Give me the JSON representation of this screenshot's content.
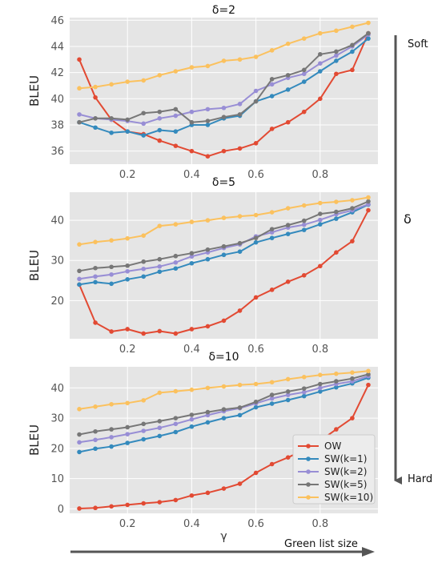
{
  "figure": {
    "xlabel": "γ",
    "ylabel": "BLEU",
    "arrow_right_label": "Soft",
    "arrow_right_mid_label": "δ",
    "arrow_right_end_label": "Hard",
    "arrow_bottom_label": "Green list size"
  },
  "colors": {
    "OW": "#e24a33",
    "SW(k=1)": "#348abd",
    "SW(k=2)": "#988ed5",
    "SW(k=5)": "#777777",
    "SW(k=10)": "#fbc15e",
    "panel_bg": "#e5e5e5",
    "grid": "#ffffff"
  },
  "chart_data": [
    {
      "type": "line",
      "title": "δ=2",
      "xlabel": "",
      "ylabel": "BLEU",
      "xlim": [
        0.02,
        0.98
      ],
      "ylim": [
        35.0,
        46.2
      ],
      "xticks": [
        0.2,
        0.4,
        0.6,
        0.8
      ],
      "xtick_labels": [
        "0.2",
        "0.4",
        "0.6",
        "0.8"
      ],
      "yticks": [
        36,
        38,
        40,
        42,
        44,
        46
      ],
      "ytick_labels": [
        "36",
        "38",
        "40",
        "42",
        "44",
        "46"
      ],
      "grid": true,
      "x": [
        0.05,
        0.1,
        0.15,
        0.2,
        0.25,
        0.3,
        0.35,
        0.4,
        0.45,
        0.5,
        0.55,
        0.6,
        0.65,
        0.7,
        0.75,
        0.8,
        0.85,
        0.9,
        0.95
      ],
      "series": [
        {
          "name": "OW",
          "values": [
            43.0,
            40.1,
            38.4,
            37.5,
            37.3,
            36.8,
            36.4,
            36.0,
            35.6,
            36.0,
            36.2,
            36.6,
            37.7,
            38.2,
            39.0,
            40.0,
            41.9,
            42.2,
            45.0
          ]
        },
        {
          "name": "SW(k=1)",
          "values": [
            38.2,
            37.8,
            37.4,
            37.5,
            37.2,
            37.6,
            37.5,
            38.0,
            38.0,
            38.5,
            38.7,
            39.8,
            40.2,
            40.7,
            41.3,
            42.1,
            42.9,
            43.6,
            44.6
          ]
        },
        {
          "name": "SW(k=2)",
          "values": [
            38.8,
            38.5,
            38.4,
            38.3,
            38.1,
            38.5,
            38.7,
            39.0,
            39.2,
            39.3,
            39.6,
            40.6,
            41.1,
            41.6,
            41.9,
            42.7,
            43.3,
            44.0,
            44.9
          ]
        },
        {
          "name": "SW(k=5)",
          "values": [
            38.2,
            38.5,
            38.5,
            38.4,
            38.9,
            39.0,
            39.2,
            38.2,
            38.3,
            38.6,
            38.8,
            39.8,
            41.5,
            41.8,
            42.2,
            43.4,
            43.6,
            44.1,
            45.0
          ]
        },
        {
          "name": "SW(k=10)",
          "values": [
            40.8,
            40.9,
            41.1,
            41.3,
            41.4,
            41.8,
            42.1,
            42.4,
            42.5,
            42.9,
            43.0,
            43.2,
            43.7,
            44.2,
            44.6,
            45.0,
            45.2,
            45.5,
            45.8
          ]
        }
      ]
    },
    {
      "type": "line",
      "title": "δ=5",
      "xlabel": "",
      "ylabel": "BLEU",
      "xlim": [
        0.02,
        0.98
      ],
      "ylim": [
        10.5,
        47.0
      ],
      "xticks": [
        0.2,
        0.4,
        0.6,
        0.8
      ],
      "xtick_labels": [
        "0.2",
        "0.4",
        "0.6",
        "0.8"
      ],
      "yticks": [
        20,
        30,
        40
      ],
      "ytick_labels": [
        "20",
        "30",
        "40"
      ],
      "grid": true,
      "x": [
        0.05,
        0.1,
        0.15,
        0.2,
        0.25,
        0.3,
        0.35,
        0.4,
        0.45,
        0.5,
        0.55,
        0.6,
        0.65,
        0.7,
        0.75,
        0.8,
        0.85,
        0.9,
        0.95
      ],
      "series": [
        {
          "name": "OW",
          "values": [
            24.0,
            14.5,
            12.3,
            12.9,
            11.8,
            12.4,
            11.8,
            12.9,
            13.6,
            15.0,
            17.5,
            20.8,
            22.7,
            24.7,
            26.3,
            28.6,
            32.0,
            34.8,
            42.5
          ]
        },
        {
          "name": "SW(k=1)",
          "values": [
            24.0,
            24.6,
            24.2,
            25.3,
            26.0,
            27.2,
            28.0,
            29.3,
            30.3,
            31.4,
            32.2,
            34.5,
            35.6,
            36.6,
            37.6,
            39.0,
            40.4,
            42.0,
            43.9
          ]
        },
        {
          "name": "SW(k=2)",
          "values": [
            25.4,
            26.0,
            26.5,
            27.3,
            27.9,
            28.5,
            29.5,
            31.0,
            32.0,
            33.1,
            34.0,
            36.0,
            37.0,
            38.2,
            38.9,
            40.1,
            41.5,
            42.5,
            44.0
          ]
        },
        {
          "name": "SW(k=5)",
          "values": [
            27.4,
            28.1,
            28.4,
            28.7,
            29.7,
            30.3,
            31.1,
            31.8,
            32.7,
            33.5,
            34.3,
            35.6,
            37.8,
            38.8,
            39.9,
            41.6,
            42.1,
            43.0,
            44.7
          ]
        },
        {
          "name": "SW(k=10)",
          "values": [
            34.0,
            34.6,
            35.0,
            35.5,
            36.2,
            38.6,
            39.0,
            39.6,
            40.0,
            40.6,
            41.0,
            41.3,
            42.0,
            43.0,
            43.7,
            44.3,
            44.6,
            45.0,
            45.7
          ]
        }
      ]
    },
    {
      "type": "line",
      "title": "δ=10",
      "xlabel": "γ",
      "ylabel": "BLEU",
      "xlim": [
        0.02,
        0.98
      ],
      "ylim": [
        -1.5,
        47.0
      ],
      "xticks": [
        0.2,
        0.4,
        0.6,
        0.8
      ],
      "xtick_labels": [
        "0.2",
        "0.4",
        "0.6",
        "0.8"
      ],
      "yticks": [
        0,
        10,
        20,
        30,
        40
      ],
      "ytick_labels": [
        "0",
        "10",
        "20",
        "30",
        "40"
      ],
      "grid": true,
      "legend": "lower-right",
      "x": [
        0.05,
        0.1,
        0.15,
        0.2,
        0.25,
        0.3,
        0.35,
        0.4,
        0.45,
        0.5,
        0.55,
        0.6,
        0.65,
        0.7,
        0.75,
        0.8,
        0.85,
        0.9,
        0.95
      ],
      "series": [
        {
          "name": "OW",
          "values": [
            0.1,
            0.3,
            0.8,
            1.3,
            1.8,
            2.2,
            2.9,
            4.4,
            5.3,
            6.7,
            8.3,
            11.9,
            14.8,
            17.0,
            19.5,
            22.5,
            26.3,
            30.0,
            41.0
          ]
        },
        {
          "name": "SW(k=1)",
          "values": [
            18.8,
            19.9,
            20.6,
            21.8,
            23.0,
            24.1,
            25.4,
            27.2,
            28.6,
            30.0,
            31.0,
            33.6,
            34.8,
            36.0,
            37.3,
            38.8,
            40.2,
            41.5,
            43.4
          ]
        },
        {
          "name": "SW(k=2)",
          "values": [
            22.0,
            22.8,
            23.7,
            24.7,
            25.8,
            26.8,
            28.1,
            29.6,
            31.0,
            32.3,
            33.3,
            34.9,
            36.5,
            37.7,
            38.6,
            40.0,
            41.3,
            42.2,
            43.9
          ]
        },
        {
          "name": "SW(k=5)",
          "values": [
            24.6,
            25.6,
            26.3,
            27.0,
            28.1,
            29.0,
            30.0,
            31.1,
            32.0,
            32.9,
            33.5,
            35.4,
            37.7,
            38.8,
            39.8,
            41.3,
            42.2,
            43.1,
            44.5
          ]
        },
        {
          "name": "SW(k=10)",
          "values": [
            33.0,
            33.8,
            34.6,
            35.0,
            35.9,
            38.4,
            38.9,
            39.4,
            40.0,
            40.5,
            41.0,
            41.3,
            41.9,
            42.9,
            43.6,
            44.3,
            44.7,
            45.1,
            45.6
          ]
        }
      ]
    }
  ]
}
